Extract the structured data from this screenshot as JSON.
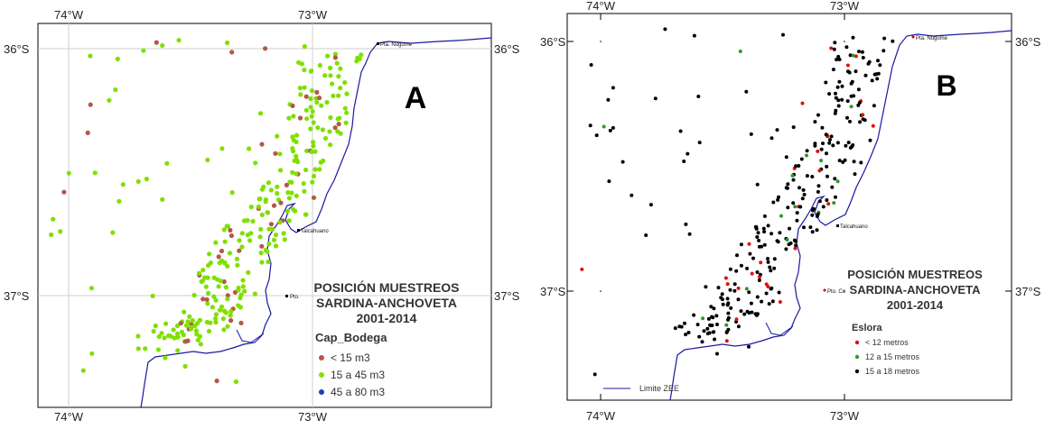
{
  "panel_a": {
    "letter": "A",
    "top_ticks": [
      "74°W",
      "73°W"
    ],
    "bottom_ticks": [
      "74°W",
      "73°W"
    ],
    "left_ticks": [
      "36°S",
      "37°S"
    ],
    "right_ticks": [
      "36°S",
      "37°S"
    ],
    "places": {
      "nugume": "Pta. Nugume",
      "talcahuano": "Talcahuano",
      "pto": "Pto."
    },
    "title_lines": [
      "POSICIÓN MUESTREOS",
      "SARDINA-ANCHOVETA",
      "2001-2014"
    ],
    "legend_title": "Cap_Bodega",
    "legend": [
      {
        "label": "< 15 m3",
        "color": "#b5574a"
      },
      {
        "label": "15 a 45 m3",
        "color": "#7fe000"
      },
      {
        "label": "45 a 80 m3",
        "color": "#1f3fb0"
      }
    ]
  },
  "panel_b": {
    "letter": "B",
    "top_ticks": [
      "74°W",
      "73°W"
    ],
    "bottom_ticks": [
      "74°W",
      "73°W"
    ],
    "left_ticks": [
      "36°S",
      "37°S"
    ],
    "right_ticks": [
      "36°S",
      "37°S"
    ],
    "places": {
      "nugume": "Pta. Nugume",
      "talcahuano": "Talcahuano",
      "pto": "Pto. Co"
    },
    "title_lines": [
      "POSICIÓN MUESTREOS",
      "SARDINA-ANCHOVETA",
      "2001-2014"
    ],
    "legend_title": "Eslora",
    "legend": [
      {
        "label": "< 12 metros",
        "color": "#e01010"
      },
      {
        "label": "12 a 15 metros",
        "color": "#2a9a2a"
      },
      {
        "label": "15 a 18 metros",
        "color": "#000000"
      }
    ],
    "zee_label": "Limite ZEE"
  },
  "colors": {
    "coast": "#1a1aa0",
    "grid": "#cfcfcf",
    "frame": "#000000"
  }
}
